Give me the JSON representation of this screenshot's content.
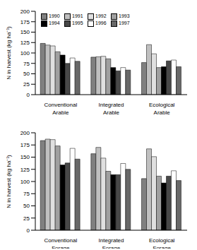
{
  "chart_data": [
    {
      "type": "bar",
      "categories": [
        "Conventional",
        "Integrated",
        "Ecological"
      ],
      "x_label": "Arable",
      "y_label": "N in harvest (kg ha⁻¹)",
      "ylim": [
        0,
        200
      ],
      "yticks": [
        0,
        25,
        50,
        75,
        100,
        125,
        150,
        175,
        200
      ],
      "legend": "upper left",
      "series": [
        {
          "name": "1990",
          "color": "#808080",
          "values": [
            123,
            90,
            77
          ]
        },
        {
          "name": "1991",
          "color": "#c0c0c0",
          "values": [
            119,
            91,
            120
          ]
        },
        {
          "name": "1992",
          "color": "#e0e0e0",
          "values": [
            117,
            92,
            98
          ]
        },
        {
          "name": "1993",
          "color": "#a0a0a0",
          "values": [
            103,
            86,
            65
          ]
        },
        {
          "name": "1994",
          "color": "#000000",
          "values": [
            95,
            65,
            67
          ]
        },
        {
          "name": "1995",
          "color": "#484848",
          "values": [
            75,
            57,
            81
          ]
        },
        {
          "name": "1996",
          "color": "#ffffff",
          "values": [
            88,
            65,
            83
          ]
        },
        {
          "name": "1997",
          "color": "#686868",
          "values": [
            80,
            59,
            67
          ]
        }
      ]
    },
    {
      "type": "bar",
      "categories": [
        "Conventional",
        "Integrated",
        "Ecological"
      ],
      "x_label": "Forage",
      "y_label": "N in harvest (kg ha⁻¹)",
      "ylim": [
        0,
        200
      ],
      "yticks": [
        0,
        25,
        50,
        75,
        100,
        125,
        150,
        175,
        200
      ],
      "series": [
        {
          "name": "1990",
          "color": "#808080",
          "values": [
            184,
            157,
            106
          ]
        },
        {
          "name": "1991",
          "color": "#c0c0c0",
          "values": [
            187,
            170,
            167
          ]
        },
        {
          "name": "1992",
          "color": "#e0e0e0",
          "values": [
            186,
            148,
            151
          ]
        },
        {
          "name": "1993",
          "color": "#a0a0a0",
          "values": [
            173,
            121,
            111
          ]
        },
        {
          "name": "1994",
          "color": "#000000",
          "values": [
            134,
            114,
            97
          ]
        },
        {
          "name": "1995",
          "color": "#484848",
          "values": [
            138,
            114,
            111
          ]
        },
        {
          "name": "1996",
          "color": "#ffffff",
          "values": [
            168,
            137,
            122
          ]
        },
        {
          "name": "1997",
          "color": "#686868",
          "values": [
            146,
            125,
            102
          ]
        }
      ]
    }
  ]
}
